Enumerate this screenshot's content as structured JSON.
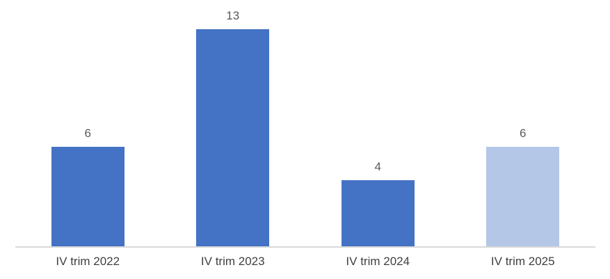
{
  "chart_data": {
    "type": "bar",
    "categories": [
      "IV trim 2022",
      "IV trim 2023",
      "IV trim 2024",
      "IV trim 2025"
    ],
    "values": [
      6,
      13,
      4,
      6
    ],
    "bar_colors": [
      "#4472C4",
      "#4472C4",
      "#4472C4",
      "#B4C7E7"
    ],
    "title": "",
    "xlabel": "",
    "ylabel": "",
    "ylim": [
      0,
      14
    ],
    "grid": false,
    "legend": false,
    "data_labels": true,
    "colors": {
      "bar_primary": "#4472C4",
      "bar_light": "#B4C7E7",
      "axis_line": "#D9D9D9",
      "value_label": "#595959",
      "category_label": "#3F3F3F",
      "background": "#FFFFFF"
    }
  }
}
